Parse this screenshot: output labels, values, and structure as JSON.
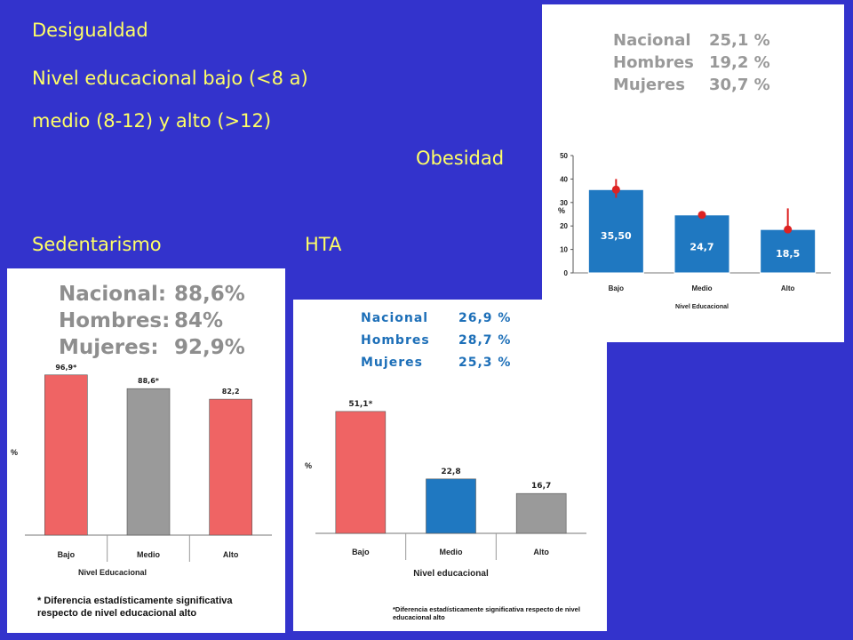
{
  "slide": {
    "background": "#3333cc",
    "text_color": "#ffff66",
    "line1": "Desigualdad",
    "line2": "Nivel educacional bajo (<8 a)",
    "line3": "medio (8-12) y alto (>12)",
    "label_obesidad": "Obesidad",
    "label_sedentarismo": "Sedentarismo",
    "label_hta": "HTA"
  },
  "stats": {
    "obesidad": [
      {
        "label": "Nacional",
        "value": "25,1  %"
      },
      {
        "label": "Hombres",
        "value": "19,2  %"
      },
      {
        "label": "Mujeres",
        "value": "30,7  %"
      }
    ],
    "sedentarismo": [
      {
        "label": "Nacional:",
        "value": "88,6%"
      },
      {
        "label": "Hombres:",
        "value": "84%"
      },
      {
        "label": "Mujeres:",
        "value": "92,9%"
      }
    ],
    "hta": [
      {
        "label": "Nacional",
        "value": "26,9  %"
      },
      {
        "label": "Hombres",
        "value": "28,7  %"
      },
      {
        "label": "Mujeres",
        "value": "25,3  %"
      }
    ]
  },
  "footnotes": {
    "sedentarismo": [
      "* Diferencia estadísticamente significativa",
      "respecto de  nivel educacional alto"
    ],
    "hta": [
      "*Diferencia estadísticamente significativa respecto de  nivel",
      "educacional alto"
    ]
  },
  "chart_data": [
    {
      "id": "obesidad",
      "type": "bar",
      "title": "Obesidad",
      "categories": [
        "Bajo",
        "Medio",
        "Alto"
      ],
      "values": [
        35.5,
        24.7,
        18.5
      ],
      "data_labels": [
        "35,50",
        "24,7",
        "18,5"
      ],
      "error_bars": [
        [
          32,
          40
        ],
        [
          23.5,
          26
        ],
        [
          17,
          27.5
        ]
      ],
      "xlabel": "Nivel Educacional",
      "ylabel": "%",
      "ylim": [
        0,
        50
      ],
      "yticks": [
        "0",
        "10",
        "20",
        "30",
        "40",
        "50"
      ],
      "colors": [
        "#1f78c1",
        "#1f78c1",
        "#1f78c1"
      ],
      "marker_color": "#dd2222"
    },
    {
      "id": "sedentarismo",
      "type": "bar",
      "title": "Sedentarismo",
      "categories": [
        "Bajo",
        "Medio",
        "Alto"
      ],
      "values": [
        96.9,
        88.6,
        82.2
      ],
      "data_labels": [
        "96,9*",
        "88,6*",
        "82,2"
      ],
      "xlabel": "Nivel Educacional",
      "ylabel": "%",
      "ylim": [
        0,
        100
      ],
      "colors": [
        "#ef6464",
        "#9a9a9a",
        "#ef6464"
      ]
    },
    {
      "id": "hta",
      "type": "bar",
      "title": "HTA",
      "categories": [
        "Bajo",
        "Medio",
        "Alto"
      ],
      "values": [
        51.1,
        22.8,
        16.7
      ],
      "data_labels": [
        "51,1*",
        "22,8",
        "16,7"
      ],
      "xlabel": "Nivel educacional",
      "ylabel": "%",
      "ylim": [
        0,
        60
      ],
      "colors": [
        "#ef6464",
        "#1f78c1",
        "#9a9a9a"
      ]
    }
  ]
}
